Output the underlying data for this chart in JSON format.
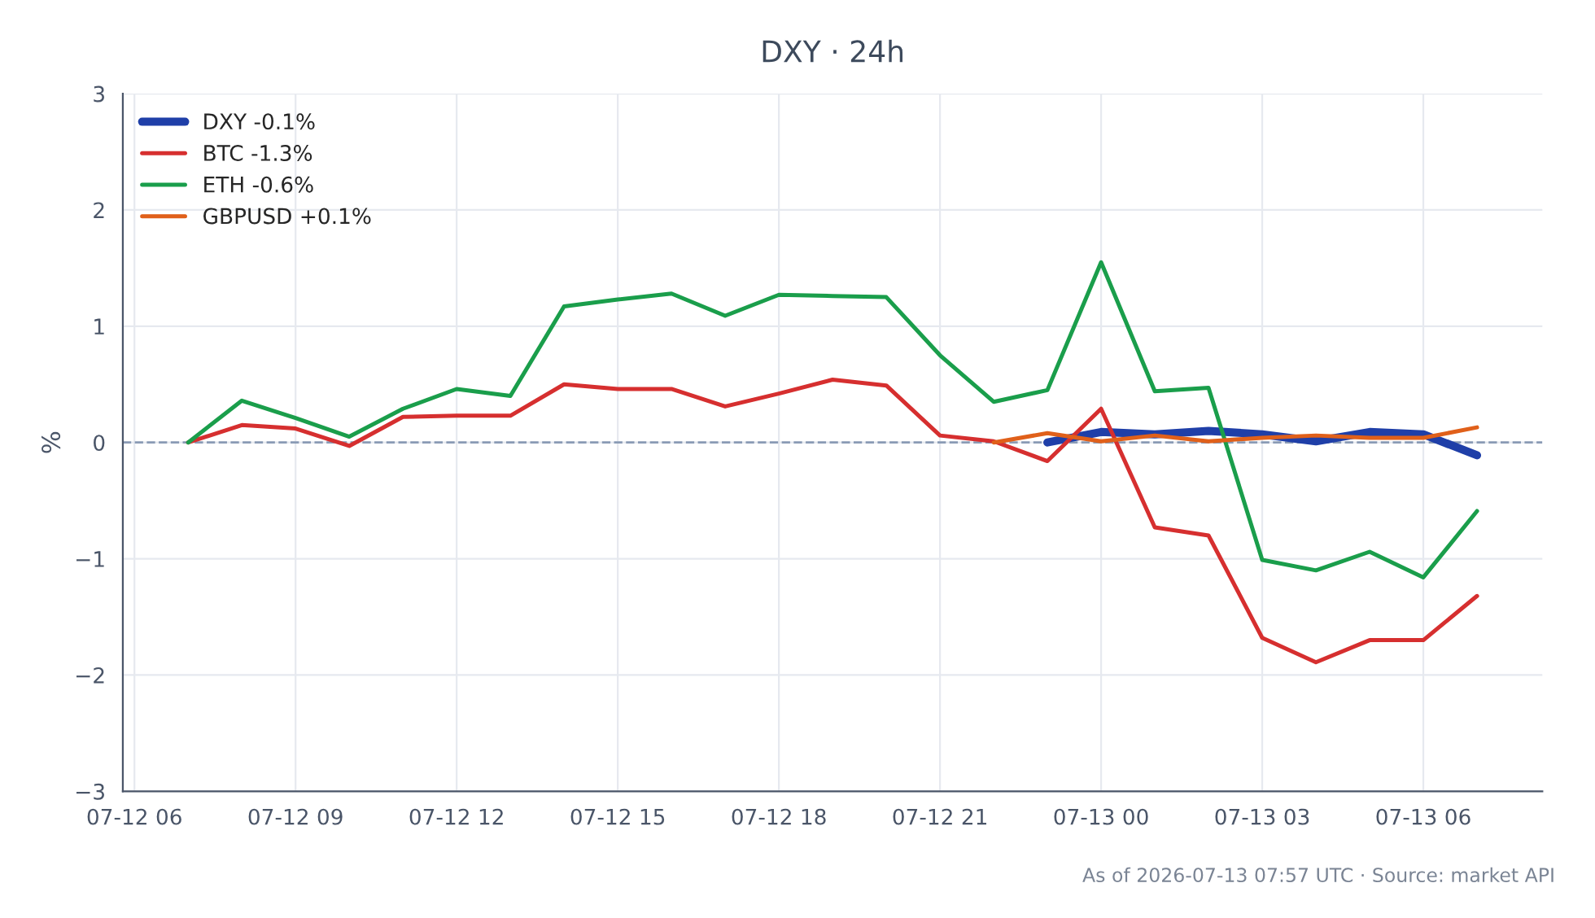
{
  "chart_data": {
    "type": "line",
    "title": "DXY · 24h",
    "ylabel": "%",
    "xlim": [
      "2026-07-12T05:47",
      "2026-07-13T08:13"
    ],
    "xticks": [
      {
        "value": "2026-07-12T06:00",
        "label": "07-12 06"
      },
      {
        "value": "2026-07-12T09:00",
        "label": "07-12 09"
      },
      {
        "value": "2026-07-12T12:00",
        "label": "07-12 12"
      },
      {
        "value": "2026-07-12T15:00",
        "label": "07-12 15"
      },
      {
        "value": "2026-07-12T18:00",
        "label": "07-12 18"
      },
      {
        "value": "2026-07-12T21:00",
        "label": "07-12 21"
      },
      {
        "value": "2026-07-13T00:00",
        "label": "07-13 00"
      },
      {
        "value": "2026-07-13T03:00",
        "label": "07-13 03"
      },
      {
        "value": "2026-07-13T06:00",
        "label": "07-13 06"
      }
    ],
    "ylim": [
      -3,
      3
    ],
    "yticks": [
      {
        "value": -3,
        "label": "−3"
      },
      {
        "value": -2,
        "label": "−2"
      },
      {
        "value": -1,
        "label": "−1"
      },
      0,
      1,
      2,
      3
    ],
    "x": [
      "2026-07-12T07:00",
      "2026-07-12T08:00",
      "2026-07-12T09:00",
      "2026-07-12T10:00",
      "2026-07-12T11:00",
      "2026-07-12T12:00",
      "2026-07-12T13:00",
      "2026-07-12T14:00",
      "2026-07-12T15:00",
      "2026-07-12T16:00",
      "2026-07-12T17:00",
      "2026-07-12T18:00",
      "2026-07-12T19:00",
      "2026-07-12T20:00",
      "2026-07-12T21:00",
      "2026-07-12T22:00",
      "2026-07-12T23:00",
      "2026-07-13T00:00",
      "2026-07-13T01:00",
      "2026-07-13T02:00",
      "2026-07-13T03:00",
      "2026-07-13T04:00",
      "2026-07-13T05:00",
      "2026-07-13T06:00",
      "2026-07-13T07:00"
    ],
    "series": [
      {
        "name": "DXY -0.1%",
        "color": "#1f3fa8",
        "values": [
          null,
          null,
          null,
          null,
          null,
          null,
          null,
          null,
          null,
          null,
          null,
          null,
          null,
          null,
          null,
          null,
          0.0,
          0.09,
          0.07,
          0.1,
          0.07,
          0.01,
          0.09,
          0.07,
          -0.11
        ]
      },
      {
        "name": "BTC -1.3%",
        "color": "#d62f2f",
        "values": [
          0.0,
          0.15,
          0.12,
          -0.03,
          0.22,
          0.23,
          0.23,
          0.5,
          0.46,
          0.46,
          0.31,
          0.42,
          0.54,
          0.49,
          0.06,
          0.01,
          -0.16,
          0.29,
          -0.73,
          -0.8,
          -1.68,
          -1.89,
          -1.7,
          -1.7,
          -1.32
        ]
      },
      {
        "name": "ETH -0.6%",
        "color": "#1a9e4b",
        "values": [
          0.0,
          0.36,
          0.21,
          0.05,
          0.29,
          0.46,
          0.4,
          1.17,
          1.23,
          1.28,
          1.09,
          1.27,
          1.26,
          1.25,
          0.75,
          0.35,
          0.45,
          1.55,
          0.44,
          0.47,
          -1.01,
          -1.1,
          -0.94,
          -1.16,
          -0.59
        ]
      },
      {
        "name": "GBPUSD +0.1%",
        "color": "#e0601a",
        "values": [
          null,
          null,
          null,
          null,
          null,
          null,
          null,
          null,
          null,
          null,
          null,
          null,
          null,
          null,
          null,
          0.0,
          0.08,
          0.01,
          0.06,
          0.01,
          0.04,
          0.06,
          0.04,
          0.04,
          0.13
        ]
      }
    ],
    "ref_lines": [
      {
        "axis": "y",
        "value": 0,
        "color": "#8a9bb5",
        "line_style": "dashed"
      }
    ],
    "grid": true,
    "legend": "top left",
    "marker": "none",
    "line_style": "solid",
    "annotations": [
      "As of 2026-07-13 07:57 UTC · Source: market API"
    ]
  }
}
